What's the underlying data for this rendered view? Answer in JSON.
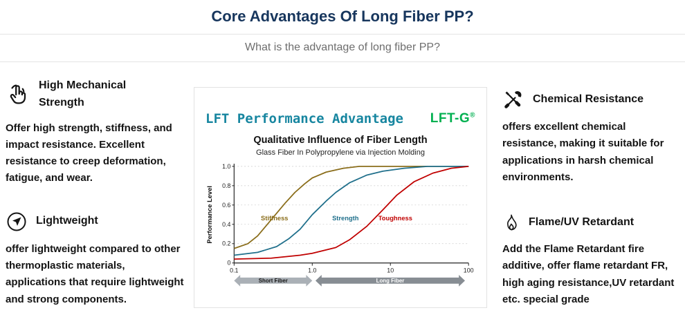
{
  "header": {
    "title": "Core Advantages Of Long Fiber PP?",
    "subtitle": "What is the advantage of long fiber PP?"
  },
  "features": [
    {
      "icon": "click-hand-icon",
      "title": "High Mechanical Strength",
      "body": "Offer high strength, stiffness, and impact resistance. Excellent resistance to creep deformation, fatigue, and wear."
    },
    {
      "icon": "paper-plane-icon",
      "title": "Lightweight",
      "body": "offer lightweight compared to other thermoplastic materials, applications that require lightweight and strong components."
    },
    {
      "icon": "crossed-tools-icon",
      "title": "Chemical Resistance",
      "body": "offers excellent chemical resistance, making it suitable for applications in harsh chemical environments."
    },
    {
      "icon": "flame-icon",
      "title": "Flame/UV Retardant",
      "body": "Add the Flame Retardant fire additive, offer flame retardant FR, high aging resistance,UV retardant etc. special grade"
    }
  ],
  "chart_data": {
    "type": "line",
    "title": "LFT Performance Advantage",
    "brand": "LFT-G",
    "registered_mark": "®",
    "subtitle": "Qualitative Influence of Fiber Length",
    "caption": "Glass Fiber In Polypropylene via Injection Molding",
    "ylabel": "Performance Level",
    "x_scale": "log",
    "xlim": [
      0.1,
      100
    ],
    "ylim": [
      0,
      1
    ],
    "x_ticks": [
      "0.1",
      "1.0",
      "10",
      "100"
    ],
    "y_ticks": [
      "0",
      "0.2",
      "0.4",
      "0.6",
      "0.8",
      "1.0"
    ],
    "grid": "horizontal-dotted",
    "legend_position": "labels-on-curves",
    "series": [
      {
        "name": "Stiffness",
        "color": "#8a6d1a",
        "label_at": [
          0.22,
          0.44
        ],
        "x": [
          0.1,
          0.15,
          0.2,
          0.3,
          0.45,
          0.6,
          0.8,
          1.0,
          1.5,
          2.5,
          4,
          10,
          100
        ],
        "y": [
          0.15,
          0.2,
          0.28,
          0.45,
          0.62,
          0.73,
          0.82,
          0.88,
          0.94,
          0.98,
          1.0,
          1.0,
          1.0
        ]
      },
      {
        "name": "Strength",
        "color": "#1f6f8b",
        "label_at": [
          1.8,
          0.44
        ],
        "x": [
          0.1,
          0.2,
          0.35,
          0.5,
          0.7,
          1.0,
          1.5,
          2,
          3,
          5,
          8,
          15,
          30,
          100
        ],
        "y": [
          0.08,
          0.11,
          0.17,
          0.25,
          0.35,
          0.5,
          0.64,
          0.73,
          0.83,
          0.91,
          0.95,
          0.98,
          1.0,
          1.0
        ]
      },
      {
        "name": "Toughness",
        "color": "#c00000",
        "label_at": [
          7,
          0.44
        ],
        "x": [
          0.1,
          0.3,
          0.7,
          1.0,
          2,
          3,
          5,
          8,
          12,
          20,
          35,
          60,
          100
        ],
        "y": [
          0.04,
          0.05,
          0.08,
          0.1,
          0.16,
          0.24,
          0.38,
          0.55,
          0.7,
          0.84,
          0.93,
          0.98,
          1.0
        ]
      }
    ],
    "x_annotations": [
      {
        "label": "Short Fiber",
        "from": 0.1,
        "to": 1.0,
        "style": "light"
      },
      {
        "label": "Long Fiber",
        "from": 1.1,
        "to": 90,
        "style": "dark"
      }
    ]
  }
}
